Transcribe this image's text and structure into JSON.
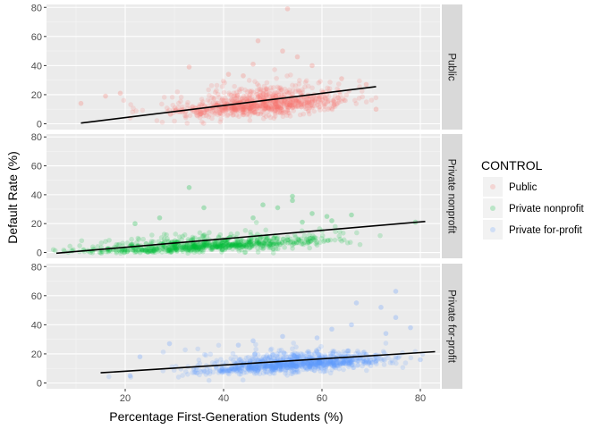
{
  "chart_data": {
    "type": "scatter",
    "xlabel": "Percentage First-Generation Students (%)",
    "ylabel": "Default Rate (%)",
    "xlim": [
      4,
      84
    ],
    "ylim": [
      -4,
      82
    ],
    "x_ticks": [
      20,
      40,
      60,
      80
    ],
    "y_ticks": [
      0,
      20,
      40,
      60,
      80
    ],
    "grid": true,
    "legend_position": "right",
    "legend": {
      "title": "CONTROL",
      "entries": [
        "Public",
        "Private nonprofit",
        "Private for-profit"
      ]
    },
    "colors": {
      "Public": "#F8766D",
      "Private nonprofit": "#00BA38",
      "Private for-profit": "#619CFF",
      "panel_bg": "#EBEBEB",
      "strip_bg": "#D9D9D9",
      "grid_major": "#FFFFFF",
      "trend_line": "#000000"
    },
    "point_alpha": 0.18,
    "series": [
      {
        "name": "Public",
        "strip_label": "Public",
        "trend": {
          "x": [
            11,
            71
          ],
          "y": [
            0.5,
            25.5
          ]
        },
        "cloud": {
          "x_range": [
            10,
            72
          ],
          "x_center": 48,
          "x_spread": 9,
          "y_base": 4,
          "y_slope": 0.24,
          "y_noise": 7,
          "count": 900
        },
        "points": [
          {
            "x": 53,
            "y": 79
          },
          {
            "x": 47,
            "y": 57
          },
          {
            "x": 52,
            "y": 50
          },
          {
            "x": 55,
            "y": 46
          },
          {
            "x": 33,
            "y": 39
          },
          {
            "x": 46,
            "y": 41
          },
          {
            "x": 41,
            "y": 34
          },
          {
            "x": 64,
            "y": 31
          },
          {
            "x": 69,
            "y": 27
          },
          {
            "x": 11,
            "y": 14
          },
          {
            "x": 16,
            "y": 19
          },
          {
            "x": 19,
            "y": 21
          },
          {
            "x": 71,
            "y": 10
          },
          {
            "x": 58,
            "y": 40
          },
          {
            "x": 44,
            "y": 33
          }
        ]
      },
      {
        "name": "Private nonprofit",
        "strip_label": "Private nonprofit",
        "trend": {
          "x": [
            6,
            81
          ],
          "y": [
            -0.5,
            21.5
          ]
        },
        "cloud": {
          "x_range": [
            5,
            80
          ],
          "x_center": 37,
          "x_spread": 12,
          "y_base": 0.5,
          "y_slope": 0.16,
          "y_noise": 4,
          "count": 800
        },
        "points": [
          {
            "x": 33,
            "y": 45
          },
          {
            "x": 54,
            "y": 39
          },
          {
            "x": 48,
            "y": 33
          },
          {
            "x": 54,
            "y": 36
          },
          {
            "x": 51,
            "y": 31
          },
          {
            "x": 58,
            "y": 27
          },
          {
            "x": 66,
            "y": 26
          },
          {
            "x": 61,
            "y": 25
          },
          {
            "x": 27,
            "y": 24
          },
          {
            "x": 22,
            "y": 20
          },
          {
            "x": 36,
            "y": 31
          },
          {
            "x": 62,
            "y": 22
          },
          {
            "x": 56,
            "y": 21
          },
          {
            "x": 46,
            "y": 24
          },
          {
            "x": 58,
            "y": 10
          },
          {
            "x": 79,
            "y": 21
          }
        ]
      },
      {
        "name": "Private for-profit",
        "strip_label": "Private for-profit",
        "trend": {
          "x": [
            15,
            83
          ],
          "y": [
            7.0,
            21.5
          ]
        },
        "cloud": {
          "x_range": [
            15,
            82
          ],
          "x_center": 54,
          "x_spread": 10,
          "y_base": 4,
          "y_slope": 0.2,
          "y_noise": 5,
          "count": 1000
        },
        "points": [
          {
            "x": 75,
            "y": 63
          },
          {
            "x": 67,
            "y": 55
          },
          {
            "x": 72,
            "y": 52
          },
          {
            "x": 75,
            "y": 45
          },
          {
            "x": 66,
            "y": 40
          },
          {
            "x": 78,
            "y": 38
          },
          {
            "x": 73,
            "y": 34
          },
          {
            "x": 62,
            "y": 37
          },
          {
            "x": 59,
            "y": 31
          },
          {
            "x": 46,
            "y": 29
          },
          {
            "x": 43,
            "y": 26
          },
          {
            "x": 52,
            "y": 32
          },
          {
            "x": 29,
            "y": 27
          },
          {
            "x": 80,
            "y": 16
          },
          {
            "x": 21,
            "y": 5
          },
          {
            "x": 23,
            "y": 18
          }
        ]
      }
    ]
  }
}
